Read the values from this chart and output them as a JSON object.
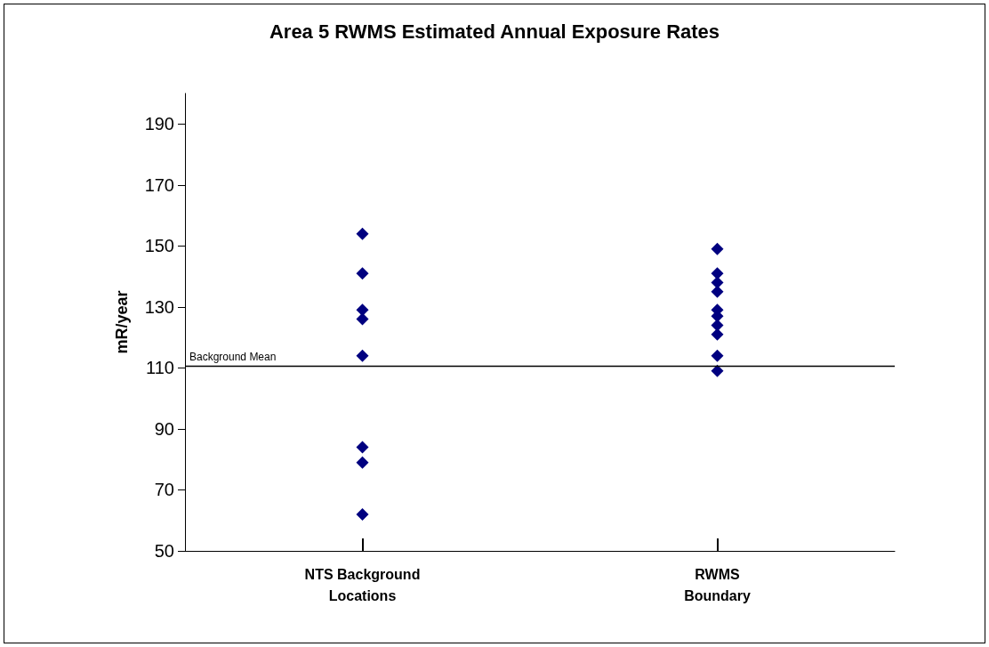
{
  "chart_data": {
    "type": "scatter",
    "title": "Area 5 RWMS Estimated Annual Exposure Rates",
    "ylabel": "mR/year",
    "categories": [
      "NTS Background Locations",
      "RWMS Boundary"
    ],
    "series": [
      {
        "color": "#000080",
        "x": [
          "NTS Background Locations",
          "NTS Background Locations",
          "NTS Background Locations",
          "NTS Background Locations",
          "NTS Background Locations",
          "NTS Background Locations",
          "NTS Background Locations",
          "NTS Background Locations"
        ],
        "values": [
          154,
          141,
          129,
          126,
          114,
          84,
          79,
          62
        ]
      },
      {
        "color": "#000080",
        "x": [
          "RWMS Boundary",
          "RWMS Boundary",
          "RWMS Boundary",
          "RWMS Boundary",
          "RWMS Boundary",
          "RWMS Boundary",
          "RWMS Boundary",
          "RWMS Boundary",
          "RWMS Boundary",
          "RWMS Boundary"
        ],
        "values": [
          149,
          141,
          138,
          135,
          129,
          127,
          124,
          121,
          114,
          109
        ]
      }
    ],
    "ylim": [
      50,
      200
    ],
    "yticks": [
      50,
      70,
      90,
      110,
      130,
      150,
      170,
      190
    ],
    "ref_lines": [
      {
        "axis": "y",
        "value": 110.5,
        "label": "Background Mean",
        "color": "#000000",
        "line_style": "solid"
      }
    ],
    "marker": "diamond",
    "grid": false
  }
}
